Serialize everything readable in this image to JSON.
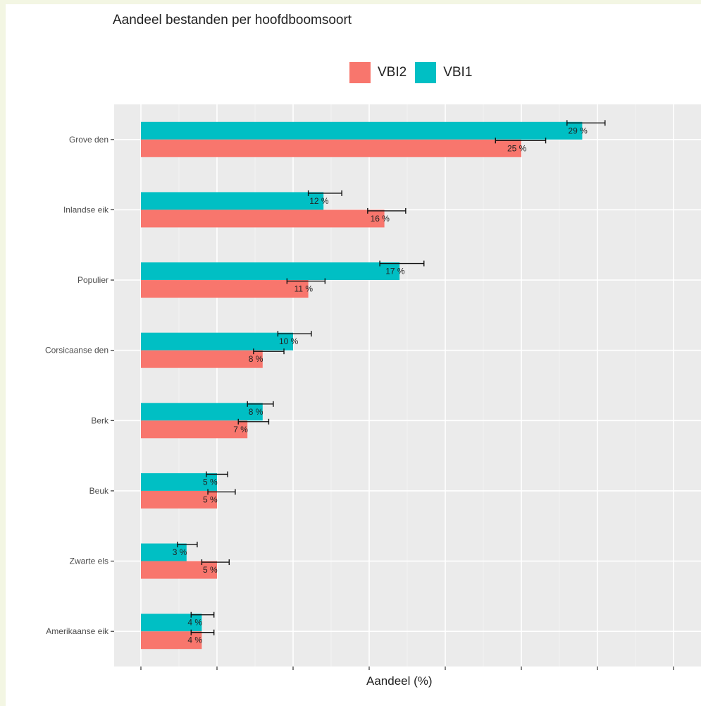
{
  "chart_data": {
    "type": "bar",
    "orientation": "horizontal",
    "title": "Aandeel bestanden per hoofdboomsoort",
    "xlabel": "Aandeel (%)",
    "ylabel": "",
    "categories": [
      "Grove den",
      "Inlandse eik",
      "Populier",
      "Corsicaanse den",
      "Berk",
      "Beuk",
      "Zwarte els",
      "Amerikaanse eik"
    ],
    "series": [
      {
        "name": "VBI1",
        "color": "#00bfc4",
        "values": [
          29,
          12,
          17,
          10,
          8,
          5,
          3,
          4
        ],
        "labels": [
          "29 %",
          "12 %",
          "17 %",
          "10 %",
          "8 %",
          "5 %",
          "3 %",
          "4 %"
        ],
        "error_low": [
          28.0,
          11.0,
          15.7,
          9.0,
          7.0,
          4.3,
          2.4,
          3.3
        ],
        "error_high": [
          30.5,
          13.2,
          18.6,
          11.2,
          8.7,
          5.7,
          3.7,
          4.8
        ]
      },
      {
        "name": "VBI2",
        "color": "#f8766d",
        "values": [
          25,
          16,
          11,
          8,
          7,
          5,
          5,
          4
        ],
        "labels": [
          "25 %",
          "16 %",
          "11 %",
          "8 %",
          "7 %",
          "5 %",
          "5 %",
          "4 %"
        ],
        "error_low": [
          23.3,
          14.9,
          9.6,
          7.4,
          6.4,
          4.4,
          4.0,
          3.3
        ],
        "error_high": [
          26.6,
          17.4,
          12.1,
          9.4,
          8.4,
          6.2,
          5.8,
          4.8
        ]
      }
    ],
    "legend_order": [
      "VBI2",
      "VBI1"
    ],
    "legend": "top",
    "xlim": [
      0,
      35
    ],
    "x_ticks": [
      0,
      5,
      10,
      15,
      20,
      25,
      30,
      35
    ],
    "x_tick_labels_shown": false,
    "grid": true
  }
}
